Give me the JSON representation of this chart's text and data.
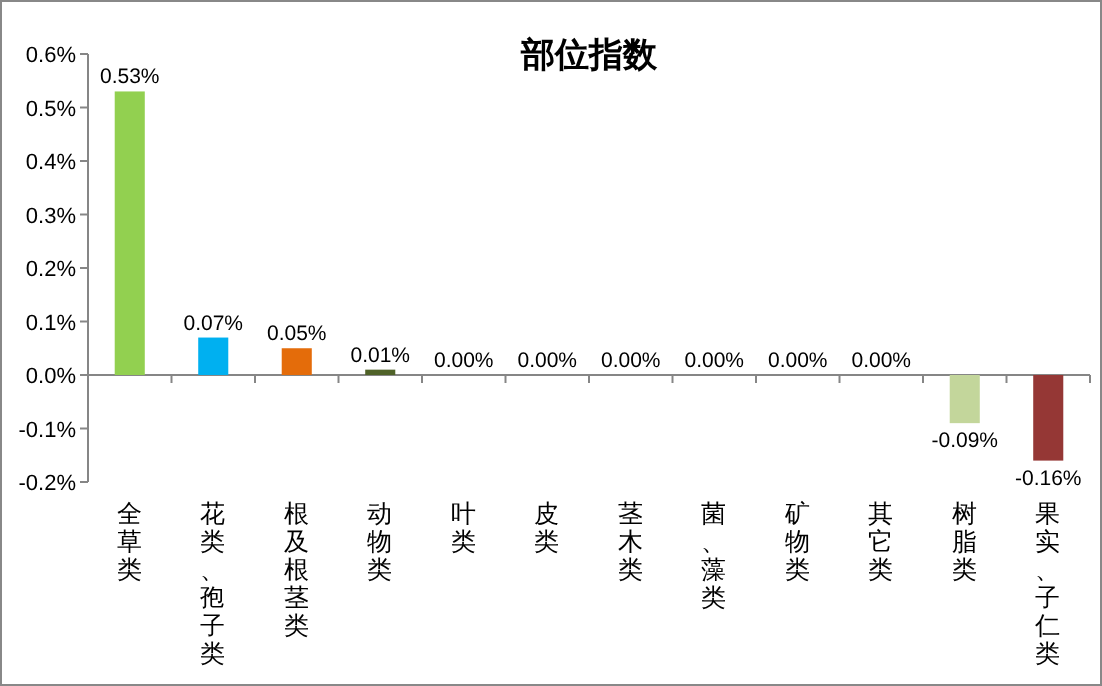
{
  "chart_data": {
    "type": "bar",
    "title": "部位指数",
    "categories": [
      "全草类",
      "花类、孢子类",
      "根及根茎类",
      "动物类",
      "叶类",
      "皮类",
      "茎木类",
      "菌、藻类",
      "矿物类",
      "其它类",
      "树脂类",
      "果实、子仁类"
    ],
    "values": [
      0.53,
      0.07,
      0.05,
      0.01,
      0,
      0,
      0,
      0,
      0,
      0,
      -0.09,
      -0.16
    ],
    "colors": [
      "#92d050",
      "#00b0f0",
      "#e46c0a",
      "#4f6228",
      "#4f6228",
      "#4f6228",
      "#4f6228",
      "#4f6228",
      "#4f6228",
      "#4f6228",
      "#c3d69b",
      "#953735"
    ],
    "value_labels": [
      "0.53%",
      "0.07%",
      "0.05%",
      "0.01%",
      "0.00%",
      "0.00%",
      "0.00%",
      "0.00%",
      "0.00%",
      "0.00%",
      "-0.09%",
      "-0.16%"
    ],
    "ylim": [
      -0.2,
      0.6
    ],
    "yticks": [
      {
        "value": -0.2,
        "label": "-0.2%"
      },
      {
        "value": -0.1,
        "label": "-0.1%"
      },
      {
        "value": 0,
        "label": "0.0%"
      },
      {
        "value": 0.1,
        "label": "0.1%"
      },
      {
        "value": 0.2,
        "label": "0.2%"
      },
      {
        "value": 0.3,
        "label": "0.3%"
      },
      {
        "value": 0.4,
        "label": "0.4%"
      },
      {
        "value": 0.5,
        "label": "0.5%"
      },
      {
        "value": 0.6,
        "label": "0.6%"
      }
    ]
  }
}
